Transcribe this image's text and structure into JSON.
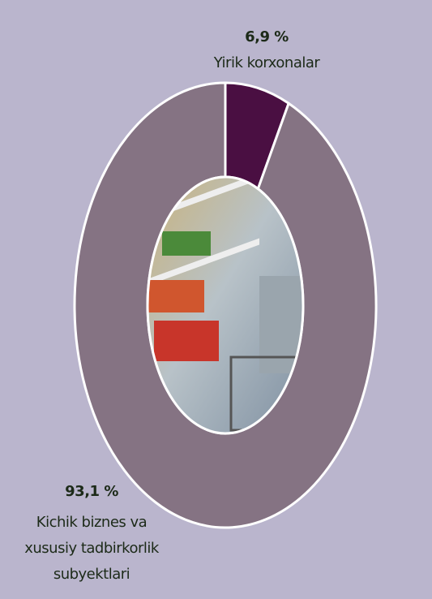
{
  "chart_data": {
    "type": "donut",
    "categories": [
      "Yirik korxonalar",
      "Kichik biznes va xususiy tadbirkorlik subyektlari"
    ],
    "values": [
      6.9,
      93.1
    ],
    "value_labels": [
      "6,9 %",
      "93,1 %"
    ],
    "colors": [
      "#4a0f42",
      "#857383"
    ]
  }
}
